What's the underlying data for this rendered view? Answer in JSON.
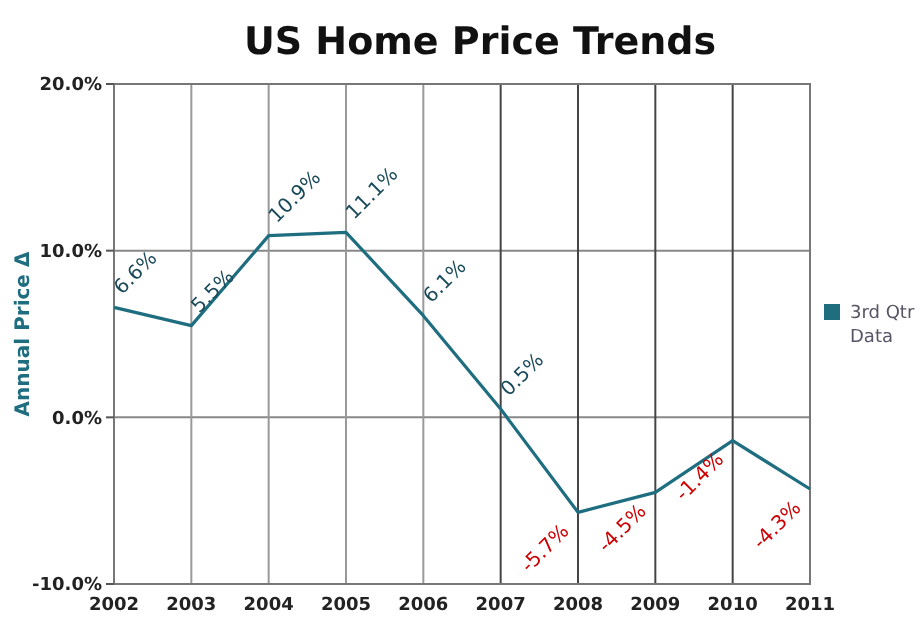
{
  "chart_data": {
    "type": "line",
    "title": "US Home Price Trends",
    "ylabel": "Annual Price Δ",
    "categories": [
      "2002",
      "2003",
      "2004",
      "2005",
      "2006",
      "2007",
      "2008",
      "2009",
      "2010",
      "2011"
    ],
    "series": [
      {
        "name": "3rd Qtr Data",
        "color": "#1f6e80",
        "values": [
          6.6,
          5.5,
          10.9,
          11.1,
          6.1,
          0.5,
          -5.7,
          -4.5,
          -1.4,
          -4.3
        ],
        "value_labels": [
          "6.6%",
          "5.5%",
          "10.9%",
          "11.1%",
          "6.1%",
          "0.5%",
          "-5.7%",
          "-4.5%",
          "-1.4%",
          "-4.3%"
        ]
      }
    ],
    "ylim": [
      -10,
      20
    ],
    "yticks": [
      {
        "value": -10,
        "label": "-10.0%"
      },
      {
        "value": 0,
        "label": "0.0%"
      },
      {
        "value": 10,
        "label": "10.0%"
      },
      {
        "value": 20,
        "label": "20.0%"
      }
    ],
    "grid": true,
    "legend": "right",
    "marker": "none"
  }
}
